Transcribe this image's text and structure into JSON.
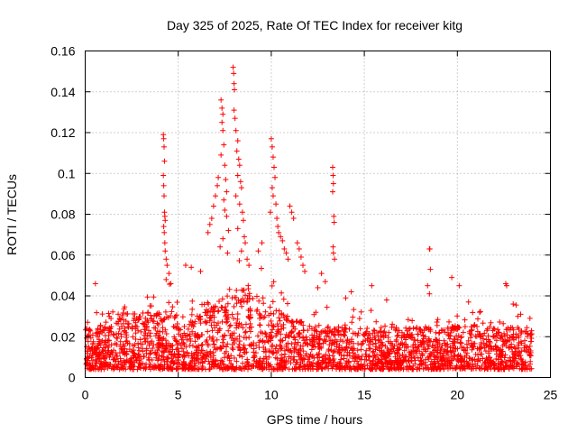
{
  "chart_data": {
    "type": "scatter",
    "title": "Day 325 of 2025, Rate Of TEC Index for receiver kitg",
    "xlabel": "GPS time / hours",
    "ylabel": "ROTI / TECUs",
    "xlim": [
      0,
      25
    ],
    "ylim": [
      0,
      0.16
    ],
    "xticks": [
      0,
      5,
      10,
      15,
      20,
      25
    ],
    "yticks": [
      0,
      0.02,
      0.04,
      0.06,
      0.08,
      0.1,
      0.12,
      0.14,
      0.16
    ],
    "xtick_labels": [
      "0",
      "5",
      "10",
      "15",
      "20",
      "25"
    ],
    "ytick_labels": [
      "0",
      "0.02",
      "0.04",
      "0.06",
      "0.08",
      "0.1",
      "0.12",
      "0.14",
      "0.16"
    ],
    "grid": true,
    "marker": "+",
    "color": "#ff0000",
    "series": [
      {
        "name": "ROTI",
        "background_envelope": {
          "x_range_hours": [
            0,
            24
          ],
          "typical_range": [
            0.004,
            0.025
          ],
          "description_points": "dense band of values between about 0.004 and 0.03 TECUs over the whole day"
        },
        "points": [
          [
            0.55,
            0.046
          ],
          [
            4.2,
            0.119
          ],
          [
            4.22,
            0.117
          ],
          [
            4.24,
            0.113
          ],
          [
            4.26,
            0.106
          ],
          [
            4.2,
            0.099
          ],
          [
            4.22,
            0.094
          ],
          [
            4.24,
            0.089
          ],
          [
            4.26,
            0.081
          ],
          [
            4.28,
            0.079
          ],
          [
            4.3,
            0.077
          ],
          [
            4.22,
            0.074
          ],
          [
            4.25,
            0.071
          ],
          [
            4.28,
            0.066
          ],
          [
            4.3,
            0.062
          ],
          [
            4.35,
            0.058
          ],
          [
            4.4,
            0.055
          ],
          [
            4.5,
            0.051
          ],
          [
            4.35,
            0.048
          ],
          [
            4.6,
            0.046
          ],
          [
            5.4,
            0.055
          ],
          [
            5.7,
            0.054
          ],
          [
            6.2,
            0.052
          ],
          [
            6.6,
            0.071
          ],
          [
            6.7,
            0.075
          ],
          [
            6.8,
            0.078
          ],
          [
            6.9,
            0.084
          ],
          [
            7.0,
            0.089
          ],
          [
            7.1,
            0.094
          ],
          [
            7.15,
            0.098
          ],
          [
            7.3,
            0.136
          ],
          [
            7.35,
            0.132
          ],
          [
            7.4,
            0.129
          ],
          [
            7.35,
            0.125
          ],
          [
            7.4,
            0.121
          ],
          [
            7.45,
            0.114
          ],
          [
            7.3,
            0.109
          ],
          [
            7.5,
            0.104
          ],
          [
            7.55,
            0.097
          ],
          [
            7.6,
            0.091
          ],
          [
            7.45,
            0.087
          ],
          [
            7.5,
            0.082
          ],
          [
            7.6,
            0.079
          ],
          [
            7.7,
            0.072
          ],
          [
            7.4,
            0.068
          ],
          [
            7.25,
            0.064
          ],
          [
            7.65,
            0.061
          ],
          [
            7.95,
            0.152
          ],
          [
            7.98,
            0.149
          ],
          [
            8.0,
            0.144
          ],
          [
            8.02,
            0.141
          ],
          [
            8.0,
            0.131
          ],
          [
            8.05,
            0.127
          ],
          [
            8.1,
            0.121
          ],
          [
            8.2,
            0.116
          ],
          [
            8.15,
            0.111
          ],
          [
            8.25,
            0.107
          ],
          [
            8.3,
            0.104
          ],
          [
            8.2,
            0.099
          ],
          [
            8.35,
            0.096
          ],
          [
            8.4,
            0.093
          ],
          [
            8.1,
            0.089
          ],
          [
            8.3,
            0.085
          ],
          [
            8.45,
            0.081
          ],
          [
            8.5,
            0.077
          ],
          [
            8.2,
            0.073
          ],
          [
            8.55,
            0.069
          ],
          [
            8.6,
            0.066
          ],
          [
            8.4,
            0.062
          ],
          [
            8.7,
            0.058
          ],
          [
            8.8,
            0.055
          ],
          [
            9.3,
            0.062
          ],
          [
            9.5,
            0.066
          ],
          [
            10.0,
            0.117
          ],
          [
            10.05,
            0.113
          ],
          [
            10.1,
            0.108
          ],
          [
            10.15,
            0.103
          ],
          [
            10.2,
            0.098
          ],
          [
            10.05,
            0.093
          ],
          [
            10.1,
            0.089
          ],
          [
            10.25,
            0.085
          ],
          [
            9.95,
            0.081
          ],
          [
            10.3,
            0.078
          ],
          [
            10.35,
            0.074
          ],
          [
            10.4,
            0.071
          ],
          [
            10.5,
            0.069
          ],
          [
            10.6,
            0.067
          ],
          [
            10.7,
            0.063
          ],
          [
            10.8,
            0.061
          ],
          [
            10.9,
            0.058
          ],
          [
            11.0,
            0.084
          ],
          [
            11.1,
            0.081
          ],
          [
            11.2,
            0.078
          ],
          [
            11.4,
            0.066
          ],
          [
            11.5,
            0.063
          ],
          [
            11.6,
            0.059
          ],
          [
            11.7,
            0.055
          ],
          [
            11.8,
            0.052
          ],
          [
            12.5,
            0.044
          ],
          [
            12.7,
            0.051
          ],
          [
            12.9,
            0.047
          ],
          [
            13.3,
            0.103
          ],
          [
            13.32,
            0.099
          ],
          [
            13.34,
            0.095
          ],
          [
            13.3,
            0.091
          ],
          [
            13.36,
            0.079
          ],
          [
            13.38,
            0.076
          ],
          [
            13.32,
            0.064
          ],
          [
            13.34,
            0.061
          ],
          [
            13.4,
            0.058
          ],
          [
            14.0,
            0.039
          ],
          [
            14.3,
            0.042
          ],
          [
            15.4,
            0.045
          ],
          [
            16.2,
            0.038
          ],
          [
            18.5,
            0.063
          ],
          [
            18.52,
            0.063
          ],
          [
            18.55,
            0.053
          ],
          [
            18.4,
            0.045
          ],
          [
            18.5,
            0.041
          ],
          [
            19.7,
            0.049
          ],
          [
            20.1,
            0.045
          ],
          [
            20.6,
            0.037
          ],
          [
            21.2,
            0.032
          ],
          [
            22.6,
            0.046
          ],
          [
            22.65,
            0.045
          ],
          [
            23.0,
            0.036
          ],
          [
            23.4,
            0.031
          ],
          [
            23.9,
            0.029
          ]
        ]
      }
    ]
  }
}
